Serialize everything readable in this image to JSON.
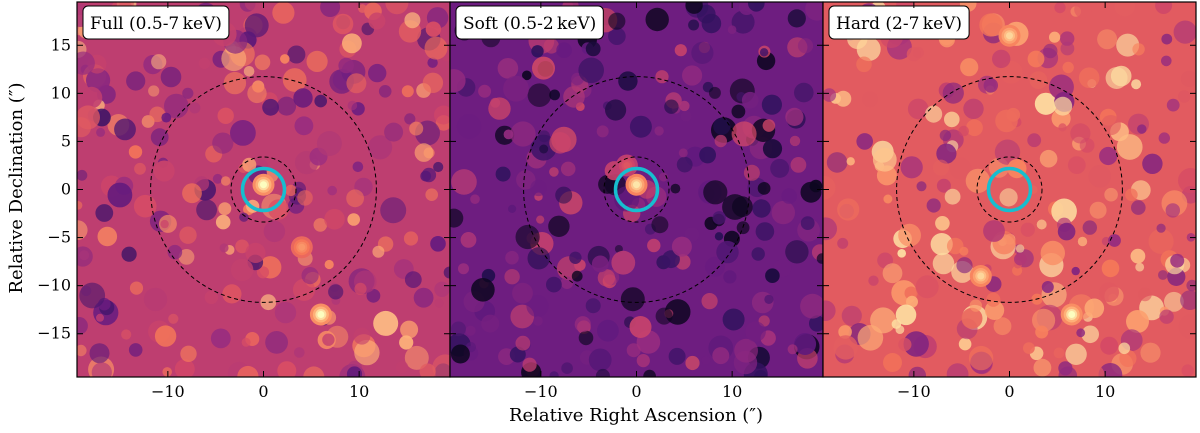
{
  "chart_data": {
    "type": "heatmap",
    "description_panels": 3,
    "xlabel": "Relative Right Ascension (″)",
    "ylabel": "Relative Declination (″)",
    "xlim": [
      -19.5,
      19.5
    ],
    "ylim": [
      -19.5,
      19.5
    ],
    "x_ticks": [
      -10,
      0,
      10
    ],
    "x_tick_labels": [
      "−10",
      "0",
      "10"
    ],
    "y_ticks": [
      15,
      10,
      5,
      0,
      -5,
      -10,
      -15
    ],
    "y_tick_labels": [
      "15",
      "10",
      "5",
      "0",
      "−5",
      "−10",
      "−15"
    ],
    "colormap": "magma",
    "colors": {
      "dark": "#3b1a6b",
      "mid": "#b5367a",
      "bright": "#f8765c",
      "peak": "#fcfdbf",
      "source_circle": "#17becf",
      "annulus": "#000000"
    },
    "circles": [
      {
        "name": "source",
        "center": [
          0,
          0
        ],
        "radius": 2.2,
        "style": "solid"
      },
      {
        "name": "annulus-inner",
        "center": [
          0,
          0
        ],
        "radius": 3.4,
        "style": "dashed"
      },
      {
        "name": "annulus-outer",
        "center": [
          0,
          0
        ],
        "radius": 11.8,
        "style": "dashed"
      }
    ],
    "panels": [
      {
        "label": "Full (0.5-7 keV)",
        "band": "full",
        "brightness": 0.55,
        "peaks": [
          {
            "x": 0,
            "y": 0.5,
            "value": 1.0
          },
          {
            "x": 6,
            "y": -13,
            "value": 1.0
          },
          {
            "x": 4,
            "y": -6,
            "value": 0.6
          }
        ]
      },
      {
        "label": "Soft (0.5-2 keV)",
        "band": "soft",
        "brightness": 0.28,
        "peaks": [
          {
            "x": 0,
            "y": 0.5,
            "value": 0.95
          },
          {
            "x": -1,
            "y": 2.5,
            "value": 0.5
          }
        ]
      },
      {
        "label": "Hard (2-7 keV)",
        "band": "hard",
        "brightness": 0.7,
        "peaks": [
          {
            "x": 6.5,
            "y": -13,
            "value": 1.0
          },
          {
            "x": 0,
            "y": 16,
            "value": 0.8
          },
          {
            "x": -3,
            "y": -9,
            "value": 0.8
          }
        ]
      }
    ]
  }
}
